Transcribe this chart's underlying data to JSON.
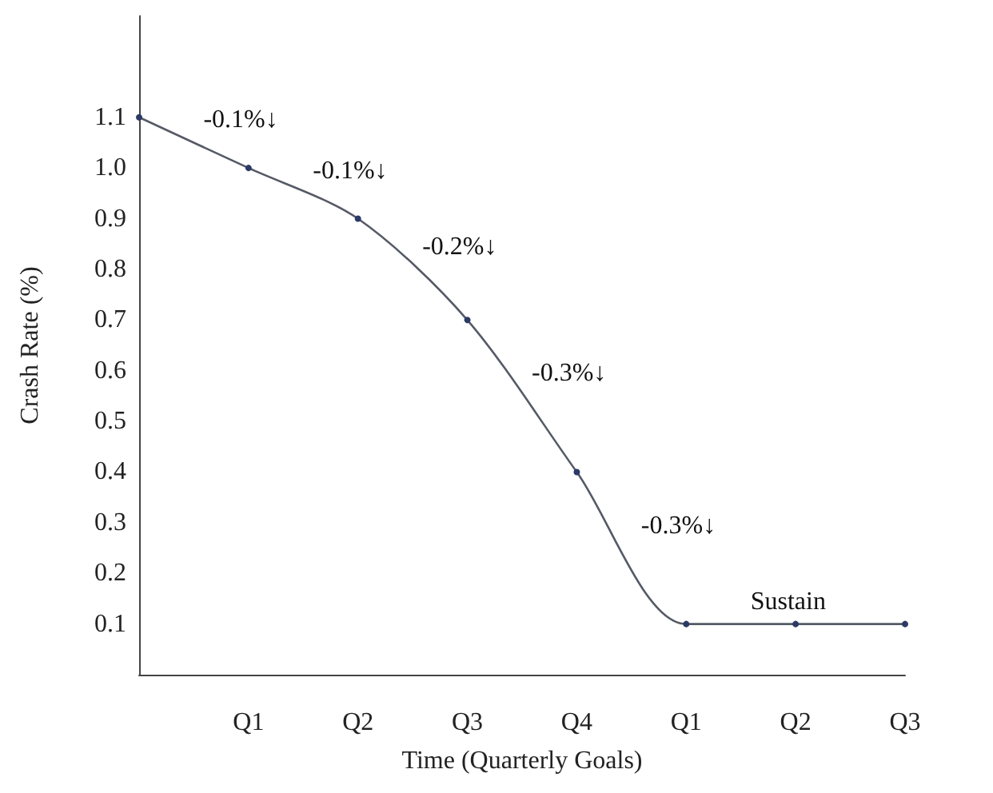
{
  "chart_data": {
    "type": "line",
    "xlabel": "Time (Quarterly Goals)",
    "ylabel": "Crash Rate (%)",
    "categories": [
      null,
      "Q1",
      "Q2",
      "Q3",
      "Q4",
      "Q1",
      "Q2",
      "Q3"
    ],
    "series": [
      {
        "color": "#555a66",
        "values": [
          1.1,
          1.0,
          0.9,
          0.7,
          0.4,
          0.1,
          0.1,
          0.1
        ]
      }
    ],
    "ylim": [
      0,
      1.3
    ],
    "yticks": [
      0.1,
      0.2,
      0.3,
      0.4,
      0.5,
      0.6,
      0.7,
      0.8,
      0.9,
      {
        "value": 1.0,
        "label": "1.0"
      },
      1.1
    ],
    "annotations": [
      "-0.1%↓",
      "-0.1%↓",
      "-0.2%↓",
      "-0.3%↓",
      "-0.3%↓",
      "Sustain"
    ],
    "marker": "circle",
    "line_style": "solid",
    "grid": false
  }
}
